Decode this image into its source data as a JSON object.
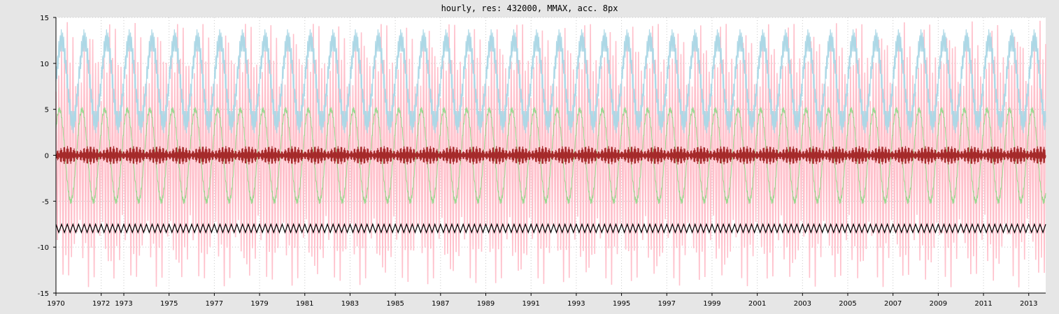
{
  "chart_data": {
    "type": "line",
    "title": "hourly, res: 432000, MMAX, acc. 8px",
    "xlabel": "",
    "ylabel": "",
    "xlim": [
      1970,
      2013.75
    ],
    "ylim": [
      -15,
      15
    ],
    "x_ticks": [
      "1970",
      "1972",
      "1973",
      "1975",
      "1977",
      "1979",
      "1981",
      "1983",
      "1985",
      "1987",
      "1989",
      "1991",
      "1993",
      "1995",
      "1997",
      "1999",
      "2001",
      "2003",
      "2005",
      "2007",
      "2009",
      "2011",
      "2013"
    ],
    "y_ticks": [
      15,
      10,
      5,
      0,
      -5,
      -10,
      -15
    ],
    "grid": true,
    "legend": "none",
    "background": "#ffffff",
    "series": [
      {
        "color": "#ffc0cb",
        "description_values": {
          "envelope_min": -14.5,
          "envelope_max": 14.8,
          "period_years": 1.0
        }
      },
      {
        "color": "#add8e6",
        "description_values": {
          "min": 2.8,
          "max": 13.3,
          "period_years": 1.0
        }
      },
      {
        "color": "#98d98e",
        "description_values": {
          "min": -5.0,
          "max": 5.0,
          "period_years": 1.0
        }
      },
      {
        "color": "#a52a2a",
        "description_values": {
          "min": -1.0,
          "max": 1.0,
          "period_years": 1.0
        }
      },
      {
        "color": "#000000",
        "description_values": {
          "min": -8.4,
          "max": -7.5,
          "period_years": 0.25
        }
      }
    ]
  }
}
